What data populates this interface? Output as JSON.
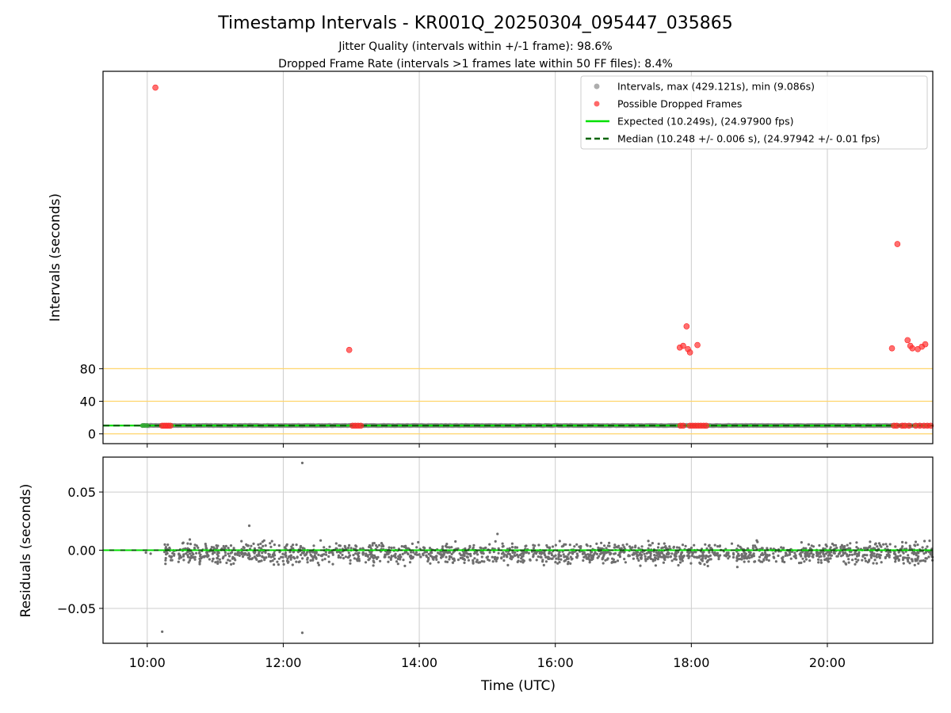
{
  "title": "Timestamp Intervals - KR001Q_20250304_095447_035865",
  "subtitle_1": "Jitter Quality (intervals within +/-1 frame): 98.6%",
  "subtitle_2": "Dropped Frame Rate (intervals >1 frames late within 50 FF files): 8.4%",
  "colors": {
    "intervals": "#808080",
    "dropped": "#ff0000",
    "expected": "#00e000",
    "median": "#006400",
    "threshold": "#ffd56b",
    "grid": "#cccccc"
  },
  "chart_data": [
    {
      "type": "scatter",
      "ylabel": "Intervals (seconds)",
      "xlabel": "",
      "xlim": [
        9.35,
        21.55
      ],
      "ylim": [
        -12,
        445
      ],
      "x_ticks": [
        10,
        12,
        14,
        16,
        18,
        20
      ],
      "y_tick_labels": [
        "0",
        "40",
        "80"
      ],
      "y_tick_values": [
        0,
        40,
        80
      ],
      "horizontal_threshold_lines": [
        0,
        40,
        80
      ],
      "grid": "vertical",
      "legend_position": "upper right",
      "legend": [
        {
          "label": "Intervals, max (429.121s), min (9.086s)",
          "kind": "marker",
          "color": "#999999"
        },
        {
          "label": "Possible Dropped Frames",
          "kind": "marker",
          "color": "#ff4444"
        },
        {
          "label": "Expected (10.249s), (24.97900 fps)",
          "kind": "line",
          "color": "#00e000"
        },
        {
          "label": "Median (10.248 +/- 0.006 s), (24.97942 +/- 0.01 fps)",
          "kind": "dashed",
          "color": "#006400"
        }
      ],
      "expected_value": 10.249,
      "median_value": 10.248,
      "regular_intervals_x_range": [
        9.93,
        21.5
      ],
      "dropped_frames": [
        {
          "x": 10.12,
          "y": 425
        },
        {
          "x": 10.22,
          "y": 10
        },
        {
          "x": 10.25,
          "y": 10
        },
        {
          "x": 10.28,
          "y": 10
        },
        {
          "x": 10.31,
          "y": 10
        },
        {
          "x": 10.34,
          "y": 10
        },
        {
          "x": 12.97,
          "y": 103
        },
        {
          "x": 13.02,
          "y": 10
        },
        {
          "x": 13.06,
          "y": 10
        },
        {
          "x": 13.1,
          "y": 10
        },
        {
          "x": 13.14,
          "y": 10
        },
        {
          "x": 17.83,
          "y": 106
        },
        {
          "x": 17.88,
          "y": 108
        },
        {
          "x": 17.93,
          "y": 132
        },
        {
          "x": 17.95,
          "y": 104
        },
        {
          "x": 17.98,
          "y": 100
        },
        {
          "x": 18.09,
          "y": 109
        },
        {
          "x": 17.84,
          "y": 10
        },
        {
          "x": 17.88,
          "y": 10
        },
        {
          "x": 17.98,
          "y": 10
        },
        {
          "x": 18.02,
          "y": 10
        },
        {
          "x": 18.06,
          "y": 10
        },
        {
          "x": 18.1,
          "y": 10
        },
        {
          "x": 18.14,
          "y": 10
        },
        {
          "x": 18.18,
          "y": 10
        },
        {
          "x": 18.22,
          "y": 10
        },
        {
          "x": 20.95,
          "y": 105
        },
        {
          "x": 21.03,
          "y": 233
        },
        {
          "x": 21.18,
          "y": 115
        },
        {
          "x": 21.22,
          "y": 108
        },
        {
          "x": 21.25,
          "y": 105
        },
        {
          "x": 21.33,
          "y": 104
        },
        {
          "x": 21.39,
          "y": 107
        },
        {
          "x": 21.44,
          "y": 110
        },
        {
          "x": 20.98,
          "y": 10
        },
        {
          "x": 21.02,
          "y": 10
        },
        {
          "x": 21.1,
          "y": 10
        },
        {
          "x": 21.14,
          "y": 10
        },
        {
          "x": 21.2,
          "y": 10
        },
        {
          "x": 21.3,
          "y": 10
        },
        {
          "x": 21.36,
          "y": 10
        },
        {
          "x": 21.42,
          "y": 10
        },
        {
          "x": 21.47,
          "y": 10
        },
        {
          "x": 21.52,
          "y": 10
        }
      ]
    },
    {
      "type": "scatter",
      "ylabel": "Residuals (seconds)",
      "xlabel": "Time (UTC)",
      "xlim": [
        9.35,
        21.55
      ],
      "ylim": [
        -0.08,
        0.08
      ],
      "x_ticks": [
        10,
        12,
        14,
        16,
        18,
        20
      ],
      "x_tick_labels": [
        "10:00",
        "12:00",
        "14:00",
        "16:00",
        "18:00",
        "20:00"
      ],
      "y_tick_labels": [
        "0.05",
        "0.00",
        "−0.05"
      ],
      "y_tick_values": [
        0.05,
        0.0,
        -0.05
      ],
      "grid": "both",
      "residual_band": {
        "x_range": [
          10.25,
          21.55
        ],
        "center": -0.003,
        "spread": 0.008,
        "count": 1800
      },
      "outliers": [
        {
          "x": 12.28,
          "y": 0.075
        },
        {
          "x": 11.5,
          "y": 0.021
        },
        {
          "x": 15.15,
          "y": 0.014
        },
        {
          "x": 10.22,
          "y": -0.07
        },
        {
          "x": 12.28,
          "y": -0.071
        },
        {
          "x": 9.98,
          "y": -0.002
        },
        {
          "x": 10.05,
          "y": -0.003
        }
      ],
      "median_value": 0.0
    }
  ]
}
